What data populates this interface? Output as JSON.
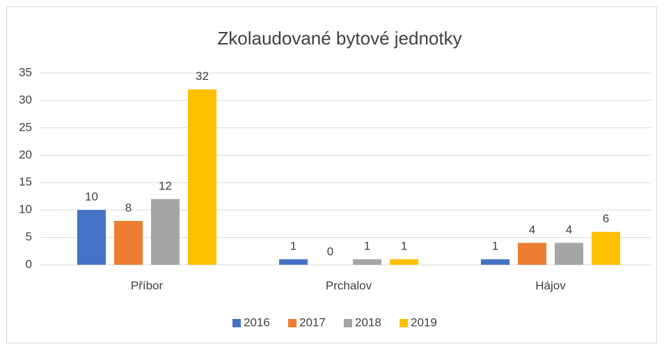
{
  "chart_data": {
    "type": "bar",
    "title": "Zkolaudované bytové jednotky",
    "categories": [
      "Příbor",
      "Prchalov",
      "Hájov"
    ],
    "series": [
      {
        "name": "2016",
        "color": "#4472c4",
        "values": [
          10,
          1,
          1
        ]
      },
      {
        "name": "2017",
        "color": "#ed7d31",
        "values": [
          8,
          0,
          4
        ]
      },
      {
        "name": "2018",
        "color": "#a5a5a5",
        "values": [
          12,
          1,
          4
        ]
      },
      {
        "name": "2019",
        "color": "#ffc000",
        "values": [
          32,
          1,
          6
        ]
      }
    ],
    "ylim": [
      0,
      35
    ],
    "yticks": [
      0,
      5,
      10,
      15,
      20,
      25,
      30,
      35
    ],
    "grid": true,
    "legend": "bottom"
  }
}
